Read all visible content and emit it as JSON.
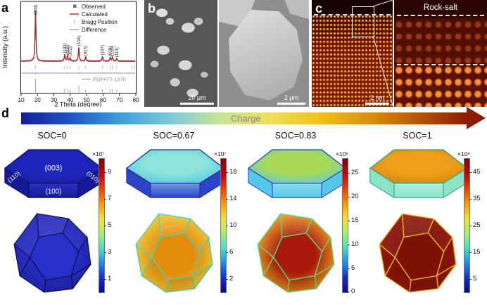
{
  "figure_labels": {
    "a": "a",
    "b": "b",
    "c": "c",
    "d": "d"
  },
  "panel_a": {
    "ylabel": "Intensity (a.u.)",
    "xlabel": "2 Theta (degree)",
    "reference_label": "PDF#77-1370"
  },
  "panel_b": {
    "scalebar_left": "20 μm",
    "scalebar_right": "2 μm"
  },
  "panel_c": {
    "annotation": "Rock-salt",
    "scalebar": "2 nm"
  },
  "panel_d": {
    "arrow_label": "Charge",
    "arrow_gradient": [
      "#151f96",
      "#1e55c4",
      "#3f9bdc",
      "#7cc8d8",
      "#c6e496",
      "#eede5e",
      "#f0c21e",
      "#dd8f0e",
      "#b65708",
      "#8c1c04"
    ],
    "jet_gradient": [
      "#7f0010",
      "#c40009",
      "#f03c00",
      "#ff9400",
      "#f4e22c",
      "#a6f06e",
      "#46e0c2",
      "#1e8cf0",
      "#1330d2",
      "#050793"
    ],
    "facet_labels": [
      "(003)",
      "(110)",
      "(100)",
      "(010)"
    ],
    "soc_states": [
      {
        "label": "SOC=0",
        "colorbar": {
          "exponent": "×10⁷",
          "ticks": [
            9,
            7,
            5,
            3,
            1
          ],
          "range": [
            0,
            10
          ]
        },
        "colors": {
          "plate_top_center": "#2026bc",
          "plate_top_edge": "#181da4",
          "plate_side": "#151a96",
          "plate_side_light": "#2a30c8",
          "plate_stroke": "#0d1060",
          "poly_face": "#1e24b2",
          "poly_face_center": "#2a31c8",
          "poly_stroke": "#10125e",
          "label_color": "#ffffff"
        }
      },
      {
        "label": "SOC=0.67",
        "colorbar": {
          "exponent": "×10⁷",
          "ticks": [
            18,
            14,
            10,
            6,
            2
          ],
          "range": [
            0,
            20
          ]
        },
        "colors": {
          "plate_top_center": "#8ce4da",
          "plate_top_edge": "#52c6e4",
          "plate_side": "#2c44c6",
          "plate_side_light": "#6f9ce2",
          "plate_stroke": "#1e2ca4",
          "poly_face": "#f1ca34",
          "poly_face_center": "#e28c0c",
          "poly_stroke": "#40d2c2",
          "label_color": "#ffffff"
        }
      },
      {
        "label": "SOC=0.83",
        "colorbar": {
          "exponent": "×10⁸",
          "ticks": [
            25,
            20,
            15,
            10,
            5,
            0
          ],
          "range": [
            0,
            28
          ]
        },
        "colors": {
          "plate_top_center": "#a9da57",
          "plate_top_edge": "#5ec8da",
          "plate_side": "#55c8ea",
          "plate_side_light": "#8adcf0",
          "plate_stroke": "#2a42c4",
          "poly_face": "#ef9f1e",
          "poly_face_center": "#a81a0a",
          "poly_stroke": "#5cda84",
          "label_color": "#ffffff"
        }
      },
      {
        "label": "SOC=1",
        "colorbar": {
          "exponent": "×10⁸",
          "ticks": [
            45,
            35,
            25,
            15,
            5
          ],
          "range": [
            0,
            50
          ]
        },
        "colors": {
          "plate_top_center": "#f0a018",
          "plate_top_edge": "#d4820e",
          "plate_side": "#8ce4c8",
          "plate_side_light": "#abefd9",
          "plate_stroke": "#2ba488",
          "poly_face": "#96170a",
          "poly_face_center": "#7c1106",
          "poly_stroke": "#eebc1c",
          "label_color": "#ffffff"
        }
      }
    ]
  },
  "chart_data": {
    "type": "line",
    "xlabel": "2 Theta (degree)",
    "ylabel": "Intensity (a.u.)",
    "xlim": [
      10,
      80
    ],
    "x_ticks": [
      10,
      20,
      30,
      40,
      50,
      60,
      70,
      80
    ],
    "grid": false,
    "legend_position": "top-right",
    "series": [
      {
        "name": "Observed",
        "type": "scatter",
        "marker": "square",
        "color": "#6e6e6e"
      },
      {
        "name": "Calculated",
        "type": "line",
        "color": "#c22018"
      },
      {
        "name": "Bragg Position",
        "type": "ticks",
        "color": "#a9c3a9"
      },
      {
        "name": "Difference",
        "type": "line",
        "color": "#7c97ba"
      }
    ],
    "peaks": [
      {
        "two_theta": 18.8,
        "hkl": "(003)",
        "rel_intensity": 100
      },
      {
        "two_theta": 36.6,
        "hkl": "(101)",
        "rel_intensity": 13
      },
      {
        "two_theta": 38.3,
        "hkl": "(006)",
        "rel_intensity": 10
      },
      {
        "two_theta": 39.9,
        "hkl": "(102)",
        "rel_intensity": 6
      },
      {
        "two_theta": 45.2,
        "hkl": "(104)",
        "rel_intensity": 27
      },
      {
        "two_theta": 49.4,
        "hkl": "(015)",
        "rel_intensity": 8
      },
      {
        "two_theta": 59.6,
        "hkl": "(107)",
        "rel_intensity": 9
      },
      {
        "two_theta": 64.4,
        "hkl": "(018)",
        "rel_intensity": 7
      },
      {
        "two_theta": 65.7,
        "hkl": "(110)",
        "rel_intensity": 8
      },
      {
        "two_theta": 68.3,
        "hkl": "(113)",
        "rel_intensity": 5
      }
    ],
    "bragg_extra": [
      77.6,
      79.3
    ],
    "reference": {
      "name": "PDF#77-1370",
      "sticks": [
        [
          18.8,
          100
        ],
        [
          36.6,
          18
        ],
        [
          38.3,
          12
        ],
        [
          39.9,
          8
        ],
        [
          45.2,
          40
        ],
        [
          49.4,
          8
        ],
        [
          59.6,
          14
        ],
        [
          64.4,
          12
        ],
        [
          65.7,
          12
        ],
        [
          68.3,
          6
        ]
      ]
    }
  }
}
